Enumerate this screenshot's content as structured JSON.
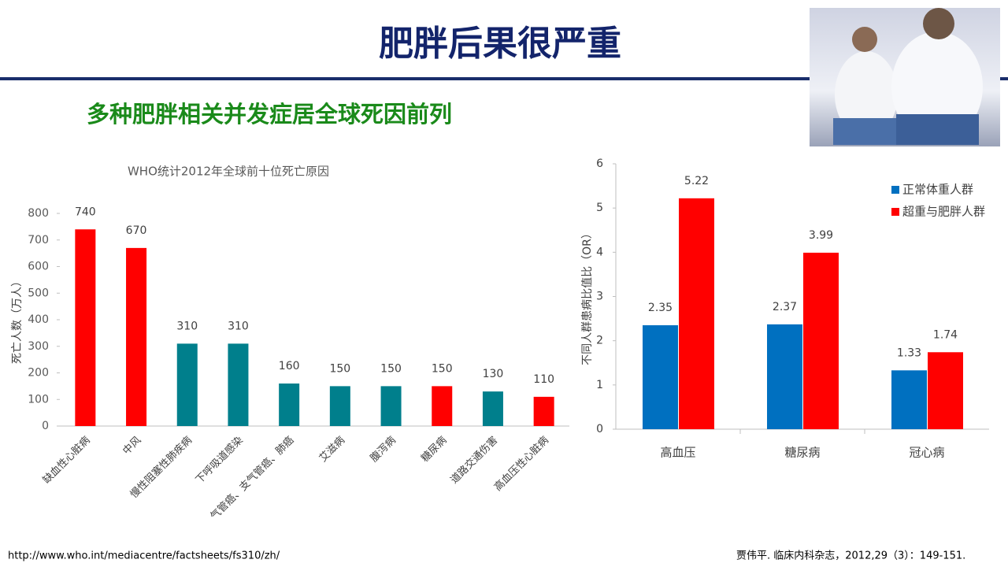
{
  "slide": {
    "title": "肥胖后果很严重",
    "subtitle": "多种肥胖相关并发症居全球死因前列",
    "source_left": "http://www.who.int/mediacentre/factsheets/fs310/zh/",
    "source_right": "贾伟平. 临床内科杂志，2012,29（3）：149-151."
  },
  "chart_data": [
    {
      "type": "bar",
      "title": "WHO统计2012年全球前十位死亡原因",
      "y_label": "死亡人数（万人）",
      "categories": [
        "缺血性心脏病",
        "中风",
        "慢性阻塞性肺疾病",
        "下呼吸道感染",
        "气管癌、支气管癌、肺癌",
        "艾滋病",
        "腹泻病",
        "糖尿病",
        "道路交通伤害",
        "高血压性心脏病"
      ],
      "values": [
        740,
        670,
        310,
        310,
        160,
        150,
        150,
        150,
        130,
        110
      ],
      "colors": [
        "#ff0000",
        "#ff0000",
        "#007f8c",
        "#007f8c",
        "#007f8c",
        "#007f8c",
        "#007f8c",
        "#ff0000",
        "#007f8c",
        "#ff0000"
      ],
      "ylim": [
        0,
        800
      ],
      "yticks": [
        0,
        100,
        200,
        300,
        400,
        500,
        600,
        700,
        800
      ]
    },
    {
      "type": "bar",
      "y_label": "不同人群患病比值比（OR）",
      "categories": [
        "高血压",
        "糖尿病",
        "冠心病"
      ],
      "series": [
        {
          "name": "正常体重人群",
          "color": "#0070c0",
          "values": [
            2.35,
            2.37,
            1.33
          ]
        },
        {
          "name": "超重与肥胖人群",
          "color": "#ff0000",
          "values": [
            5.22,
            3.99,
            1.74
          ]
        }
      ],
      "ylim": [
        0,
        6
      ],
      "yticks": [
        0,
        1,
        2,
        3,
        4,
        5,
        6
      ],
      "legend": "upper-right"
    }
  ]
}
